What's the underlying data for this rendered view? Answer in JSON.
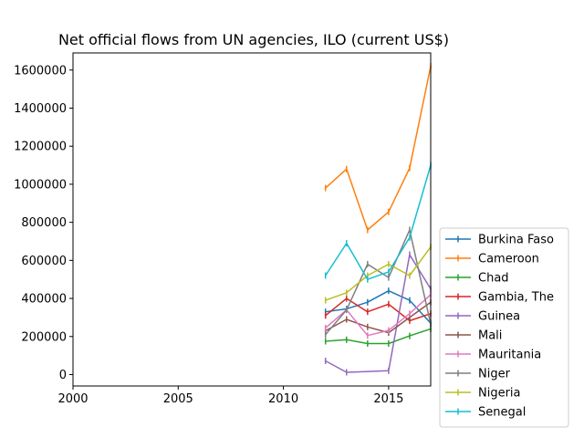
{
  "chart_data": {
    "type": "line",
    "title": "Net official flows from UN agencies, ILO (current US$)",
    "xlabel": "",
    "ylabel": "",
    "xlim": [
      2000,
      2017
    ],
    "ylim": [
      -60000,
      1690000
    ],
    "xticks": [
      2000,
      2005,
      2010,
      2015
    ],
    "yticks": [
      0,
      200000,
      400000,
      600000,
      800000,
      1000000,
      1200000,
      1400000,
      1600000
    ],
    "grid": false,
    "legend_position": "lower-right-outside",
    "x": [
      2012,
      2013,
      2014,
      2015,
      2016,
      2017
    ],
    "series": [
      {
        "name": "Burkina Faso",
        "color": "#1f77b4",
        "values": [
          330000,
          345000,
          380000,
          440000,
          390000,
          270000
        ]
      },
      {
        "name": "Cameroon",
        "color": "#ff7f0e",
        "values": [
          980000,
          1080000,
          760000,
          855000,
          1085000,
          1620000
        ]
      },
      {
        "name": "Chad",
        "color": "#2ca02c",
        "values": [
          175000,
          183000,
          163000,
          163000,
          203000,
          240000
        ]
      },
      {
        "name": "Gambia, The",
        "color": "#d62728",
        "values": [
          310000,
          400000,
          330000,
          370000,
          283000,
          320000
        ]
      },
      {
        "name": "Guinea",
        "color": "#9467bd",
        "values": [
          72000,
          12000,
          null,
          20000,
          630000,
          450000
        ]
      },
      {
        "name": "Mali",
        "color": "#8c564b",
        "values": [
          230000,
          290000,
          250000,
          220000,
          300000,
          380000
        ]
      },
      {
        "name": "Mauritania",
        "color": "#e377c2",
        "values": [
          245000,
          340000,
          205000,
          232000,
          320000,
          420000
        ]
      },
      {
        "name": "Niger",
        "color": "#7f7f7f",
        "values": [
          210000,
          340000,
          580000,
          510000,
          760000,
          265000
        ]
      },
      {
        "name": "Nigeria",
        "color": "#bcbd22",
        "values": [
          390000,
          430000,
          520000,
          580000,
          520000,
          670000
        ]
      },
      {
        "name": "Senegal",
        "color": "#17becf",
        "values": [
          520000,
          690000,
          500000,
          540000,
          720000,
          1100000
        ]
      }
    ]
  }
}
